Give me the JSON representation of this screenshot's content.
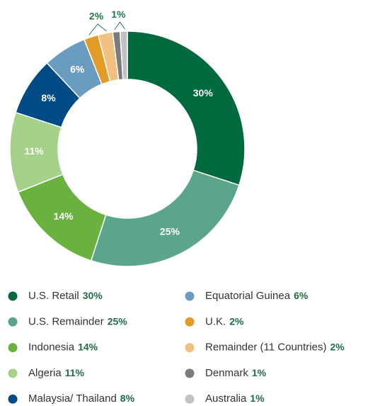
{
  "chart_data": {
    "type": "donut",
    "categories": [
      "U.S. Retail",
      "U.S. Remainder",
      "Indonesia",
      "Algeria",
      "Malaysia/ Thailand",
      "Equatorial Guinea",
      "U.K.",
      "Remainder (11 Countries)",
      "Denmark",
      "Australia"
    ],
    "values": [
      30,
      25,
      14,
      11,
      8,
      6,
      2,
      2,
      1,
      1
    ],
    "value_labels": [
      "30%",
      "25%",
      "14%",
      "11%",
      "8%",
      "6%",
      "2%",
      "2%",
      "1%",
      "1%"
    ],
    "colors": [
      "#00693e",
      "#5ba58b",
      "#6ab23f",
      "#a5d18b",
      "#004a85",
      "#6a9bc1",
      "#e39b28",
      "#f0c181",
      "#7b7b7b",
      "#c2c2c3"
    ]
  }
}
